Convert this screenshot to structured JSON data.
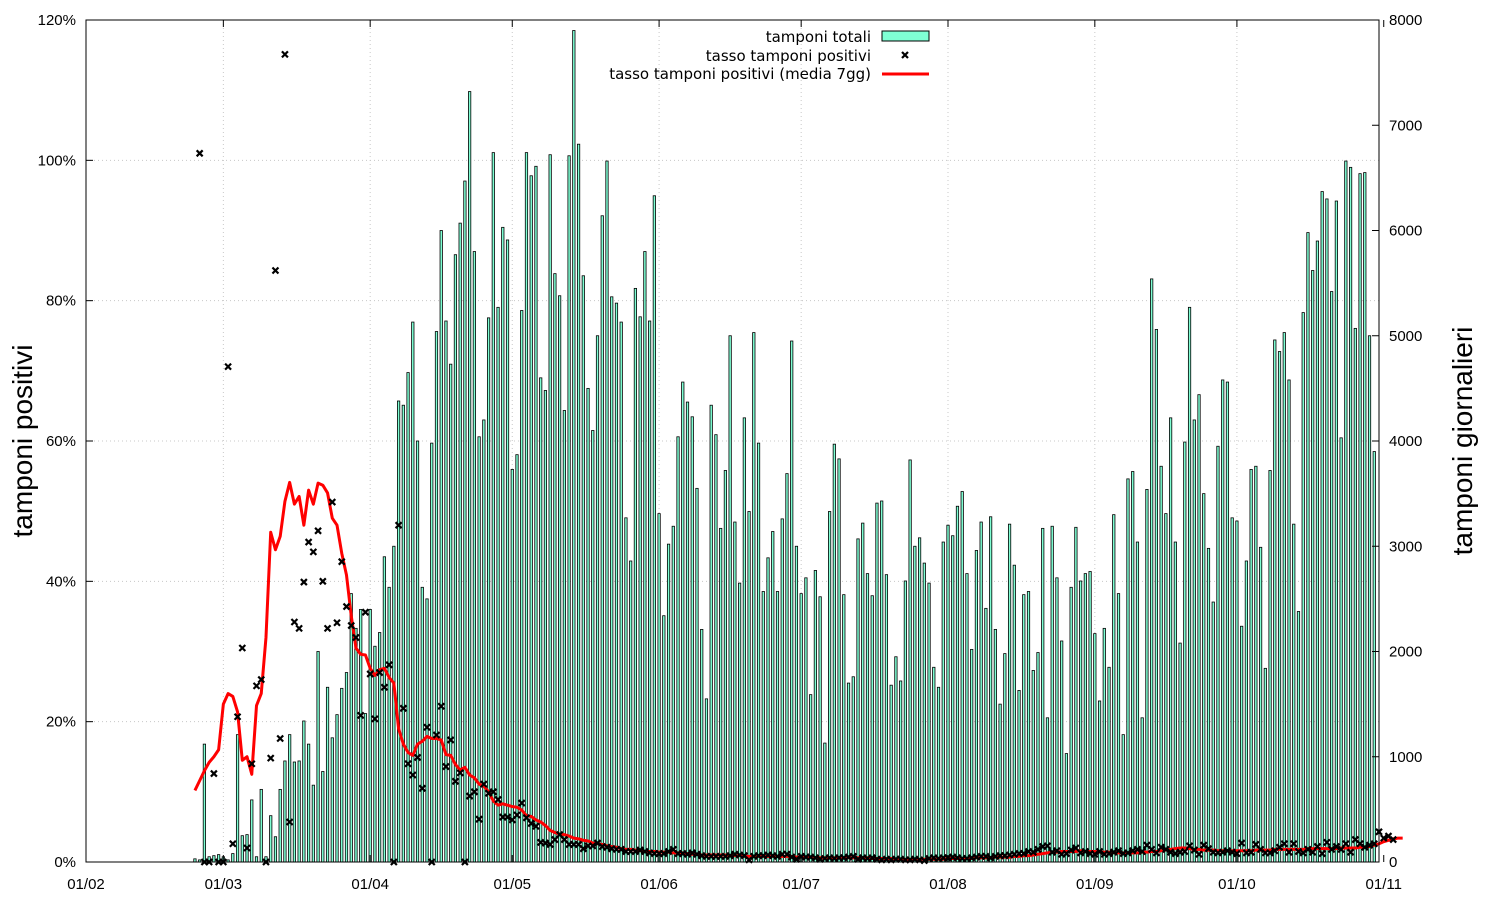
{
  "chart_data": {
    "type": "bar",
    "ylabel_left": "tamponi positivi",
    "ylabel_right": "tamponi giornalieri",
    "x_ticks": [
      "01/02",
      "01/03",
      "01/04",
      "01/05",
      "01/06",
      "01/07",
      "01/08",
      "01/09",
      "01/10",
      "01/11"
    ],
    "y_left_ticks": [
      "0%",
      "20%",
      "40%",
      "60%",
      "80%",
      "100%",
      "120%"
    ],
    "y_right_ticks": [
      "0",
      "1000",
      "2000",
      "3000",
      "4000",
      "5000",
      "6000",
      "7000",
      "8000"
    ],
    "xlim_days": [
      0,
      273
    ],
    "ylim_left_pct": [
      0,
      120
    ],
    "ylim_right": [
      0,
      8000
    ],
    "grid": true,
    "legend_position": "top-center",
    "colors": {
      "bars": "#7fffd4",
      "bar_edge": "#000000",
      "ma_line": "#ff0000",
      "points": "#000000"
    },
    "series": [
      {
        "name": "tamponi totali",
        "kind": "bar",
        "axis": "right",
        "start": "2020-02-24",
        "values": [
          30,
          20,
          1120,
          50,
          60,
          70,
          50,
          20,
          80,
          1210,
          250,
          260,
          590,
          50,
          690,
          50,
          440,
          240,
          690,
          960,
          1210,
          950,
          960,
          1340,
          1120,
          730,
          2000,
          860,
          1660,
          1180,
          1400,
          1650,
          1800,
          2550,
          2220,
          2400,
          1410,
          2400,
          2050,
          2180,
          2900,
          2610,
          3000,
          4380,
          4340,
          4650,
          5130,
          4000,
          2610,
          2500,
          3980,
          5040,
          6000,
          5140,
          4730,
          5770,
          6070,
          6470,
          7320,
          5800,
          4040,
          4200,
          5170,
          6740,
          5270,
          6030,
          5910,
          3730,
          3870,
          5240,
          6740,
          6520,
          6610,
          4600,
          4480,
          6720,
          5590,
          5380,
          4290,
          6710,
          7900,
          6820,
          5570,
          4500,
          4100,
          5000,
          6140,
          6660,
          5370,
          5310,
          5130,
          3270,
          2860,
          5450,
          5180,
          5800,
          5140,
          6330,
          3310,
          2340,
          3020,
          3190,
          4040,
          4560,
          4370,
          4230,
          3550,
          2210,
          1550,
          4340,
          4060,
          3170,
          3720,
          5000,
          3230,
          2650,
          4220,
          3330,
          5030,
          3980,
          2570,
          2890,
          3140,
          2570,
          3260,
          3690,
          4950,
          3000,
          2550,
          2700,
          1590,
          2770,
          2520,
          1130,
          3330,
          3970,
          3830,
          2540,
          1700,
          1760,
          3070,
          3220,
          2740,
          2530,
          3410,
          3430,
          2730,
          1680,
          1950,
          1720,
          2670,
          3820,
          3000,
          3080,
          2840,
          2650,
          1850,
          1660,
          3040,
          3200,
          3100,
          3380,
          3520,
          2740,
          2020,
          2960,
          3230,
          2410,
          3280,
          2210,
          1500,
          1980,
          3210,
          2820,
          1630,
          2540,
          2570,
          1820,
          1990,
          3170,
          1370,
          3190,
          2700,
          2100,
          1030,
          2610,
          3180,
          2670,
          2740,
          2760,
          2170,
          1530,
          2220,
          1850,
          3300,
          2550,
          1210,
          3640,
          3710,
          3040,
          1370,
          3540,
          5540,
          5060,
          3760,
          3310,
          4220,
          3040,
          2080,
          3990,
          5270,
          4200,
          4440,
          3500,
          2980,
          2470,
          3950,
          4580,
          4560,
          3270,
          3240,
          2240,
          2860,
          3730,
          3760,
          2990,
          1840,
          3720,
          4960,
          4850,
          5030,
          4580,
          3210,
          2380,
          5220,
          5980,
          5620,
          5900,
          6370,
          6300,
          5420,
          6280,
          4030,
          6660,
          6600,
          5070,
          6540,
          6550,
          5000,
          3900
        ]
      },
      {
        "name": "tasso tamponi positivi",
        "kind": "scatter",
        "axis": "left",
        "start": "2020-02-25",
        "values": [
          101,
          0,
          0,
          12.6,
          0,
          0,
          70.6,
          2.6,
          20.7,
          30.5,
          2,
          14,
          25.1,
          26,
          0,
          14.8,
          84.3,
          17.6,
          115.1,
          5.7,
          34.2,
          33.3,
          39.9,
          45.6,
          44.2,
          47.2,
          40,
          33.3,
          51.3,
          34.1,
          42.8,
          36.4,
          33.7,
          32,
          20.9,
          35.6,
          26.8,
          20.4,
          27,
          24.9,
          28.1,
          0,
          48,
          21.9,
          14,
          12.4,
          14.9,
          10.5,
          19.2,
          0,
          18.1,
          22.2,
          13.6,
          17.4,
          11.5,
          12.7,
          0,
          9.4,
          10,
          6.1,
          11.1,
          9.8,
          10,
          8.9,
          6.4,
          6.4,
          6,
          6.7,
          8.4,
          6.3,
          5.5,
          5.1,
          2.8,
          2.7,
          2.5,
          3.2,
          3.9,
          3.2,
          2.5,
          2.5,
          2.5,
          1.9,
          2.3,
          2.3,
          2.7,
          2.2,
          2.1,
          1.9,
          1.8,
          1.8,
          1.5,
          1.5,
          1.5,
          1.7,
          1.5,
          1.3,
          1.2,
          1.2,
          1.2,
          1.5,
          1.8,
          1.2,
          1.2,
          1.1,
          1.3,
          1.1,
          0.9,
          0.8,
          0.8,
          0.8,
          0.8,
          0.8,
          0.9,
          1.1,
          1,
          0.9,
          0.3,
          0.8,
          0.9,
          0.9,
          1,
          0.9,
          0.8,
          1.1,
          1.1,
          0.7,
          0.4,
          0.8,
          0.7,
          0.7,
          0.6,
          0.4,
          0.5,
          0.6,
          0.5,
          0.6,
          0.6,
          0.7,
          0.8,
          0.4,
          0.6,
          0.5,
          0.6,
          0.4,
          0.3,
          0.4,
          0.3,
          0.4,
          0.4,
          0.3,
          0.3,
          0.4,
          0.3,
          0.2,
          0.5,
          0.6,
          0.5,
          0.6,
          0.6,
          0.7,
          0.6,
          0.5,
          0.5,
          0.6,
          0.7,
          0.8,
          0.8,
          0.6,
          0.8,
          0.9,
          0.9,
          1,
          1.1,
          1.2,
          1.2,
          1.5,
          1.4,
          1.8,
          2.2,
          2.3,
          1.4,
          1.6,
          1.1,
          1.2,
          1.7,
          2,
          1.3,
          1.5,
          1.2,
          1.1,
          1.5,
          1.1,
          1.2,
          1.4,
          1.6,
          1.2,
          1.3,
          1.6,
          1.8,
          1.5,
          2.4,
          1.8,
          1.3,
          2.1,
          1.8,
          1.4,
          1.2,
          1.4,
          1.5,
          2.3,
          1.7,
          1.1,
          2.4,
          1.9,
          1.4,
          1.3,
          1.4,
          1.6,
          1.4,
          1.2,
          2.7,
          1.3,
          1.4,
          2.5,
          1.8,
          1.3,
          1.3,
          1.6,
          2.1,
          2.6,
          1.4,
          2.6,
          1.5,
          1.3,
          1.8,
          1.4,
          2.2,
          1.2,
          2.8,
          1.8,
          2.2,
          1.8,
          2.6,
          1.4,
          3.2,
          2.6,
          2.1,
          2.4,
          2.6,
          4.3,
          3.4,
          3.7,
          3.2
        ]
      },
      {
        "name": "tasso tamponi positivi (media 7gg)",
        "kind": "line",
        "axis": "left",
        "start": "2020-02-24",
        "values": [
          10.2,
          11.6,
          13,
          14.2,
          15,
          16,
          22.5,
          24,
          23.6,
          21.4,
          14.5,
          15,
          12.5,
          22.3,
          24,
          32,
          47,
          44.5,
          46.4,
          51.4,
          54.1,
          51,
          52.1,
          48,
          53,
          51,
          54,
          53.7,
          52.6,
          49,
          48,
          44,
          40.9,
          35.1,
          30.5,
          29.6,
          29.5,
          27.6,
          26.6,
          27.4,
          27.6,
          26.3,
          25.5,
          19,
          16.8,
          15.6,
          15.2,
          16.8,
          17.2,
          17.9,
          17.6,
          17.6,
          17.4,
          15.3,
          15.2,
          13.9,
          13.1,
          13.5,
          12.4,
          12,
          11.1,
          10.8,
          10,
          8.7,
          8.1,
          8.3,
          8.1,
          7.9,
          7.8,
          7.4,
          6.6,
          6.5,
          6,
          5.7,
          5.2,
          4.5,
          4.2,
          4,
          3.9,
          3.7,
          3.4,
          3.3,
          3.1,
          3,
          2.7,
          2.6,
          2.5,
          2.3,
          2.2,
          2.1,
          1.9,
          1.8,
          1.8,
          1.7,
          1.6,
          1.5,
          1.5,
          1.5,
          1.4,
          1.4,
          1.4,
          1.3,
          1.3,
          1.3,
          1.2,
          1.1,
          1.1,
          1,
          1,
          1,
          1,
          1,
          1,
          0.9,
          0.9,
          0.9,
          0.8,
          0.8,
          0.8,
          0.8,
          0.8,
          0.8,
          0.8,
          0.8,
          0.8,
          0.8,
          0.8,
          0.7,
          0.7,
          0.7,
          0.7,
          0.6,
          0.6,
          0.6,
          0.6,
          0.6,
          0.6,
          0.6,
          0.6,
          0.6,
          0.6,
          0.6,
          0.6,
          0.5,
          0.5,
          0.5,
          0.5,
          0.5,
          0.4,
          0.4,
          0.4,
          0.4,
          0.4,
          0.4,
          0.4,
          0.4,
          0.4,
          0.4,
          0.4,
          0.5,
          0.5,
          0.5,
          0.5,
          0.5,
          0.5,
          0.6,
          0.6,
          0.6,
          0.6,
          0.7,
          0.7,
          0.7,
          0.7,
          0.8,
          0.8,
          0.9,
          0.9,
          1,
          1.1,
          1.2,
          1.3,
          1.4,
          1.4,
          1.5,
          1.5,
          1.5,
          1.5,
          1.6,
          1.5,
          1.5,
          1.5,
          1.4,
          1.4,
          1.4,
          1.3,
          1.3,
          1.3,
          1.3,
          1.3,
          1.3,
          1.4,
          1.4,
          1.5,
          1.5,
          1.6,
          1.7,
          1.8,
          1.9,
          2,
          2,
          1.9,
          1.8,
          1.8,
          1.7,
          1.7,
          1.7,
          1.6,
          1.6,
          1.6,
          1.6,
          1.6,
          1.6,
          1.6,
          1.6,
          1.7,
          1.7,
          1.7,
          1.7,
          1.8,
          1.8,
          1.8,
          1.8,
          1.8,
          1.8,
          1.8,
          1.9,
          1.9,
          1.9,
          1.9,
          1.9,
          1.9,
          1.9,
          2,
          2,
          2,
          2,
          2.1,
          2.1,
          2.2,
          2.4,
          2.6,
          2.9,
          3.1,
          3.3,
          3.4,
          3.4
        ]
      }
    ]
  }
}
